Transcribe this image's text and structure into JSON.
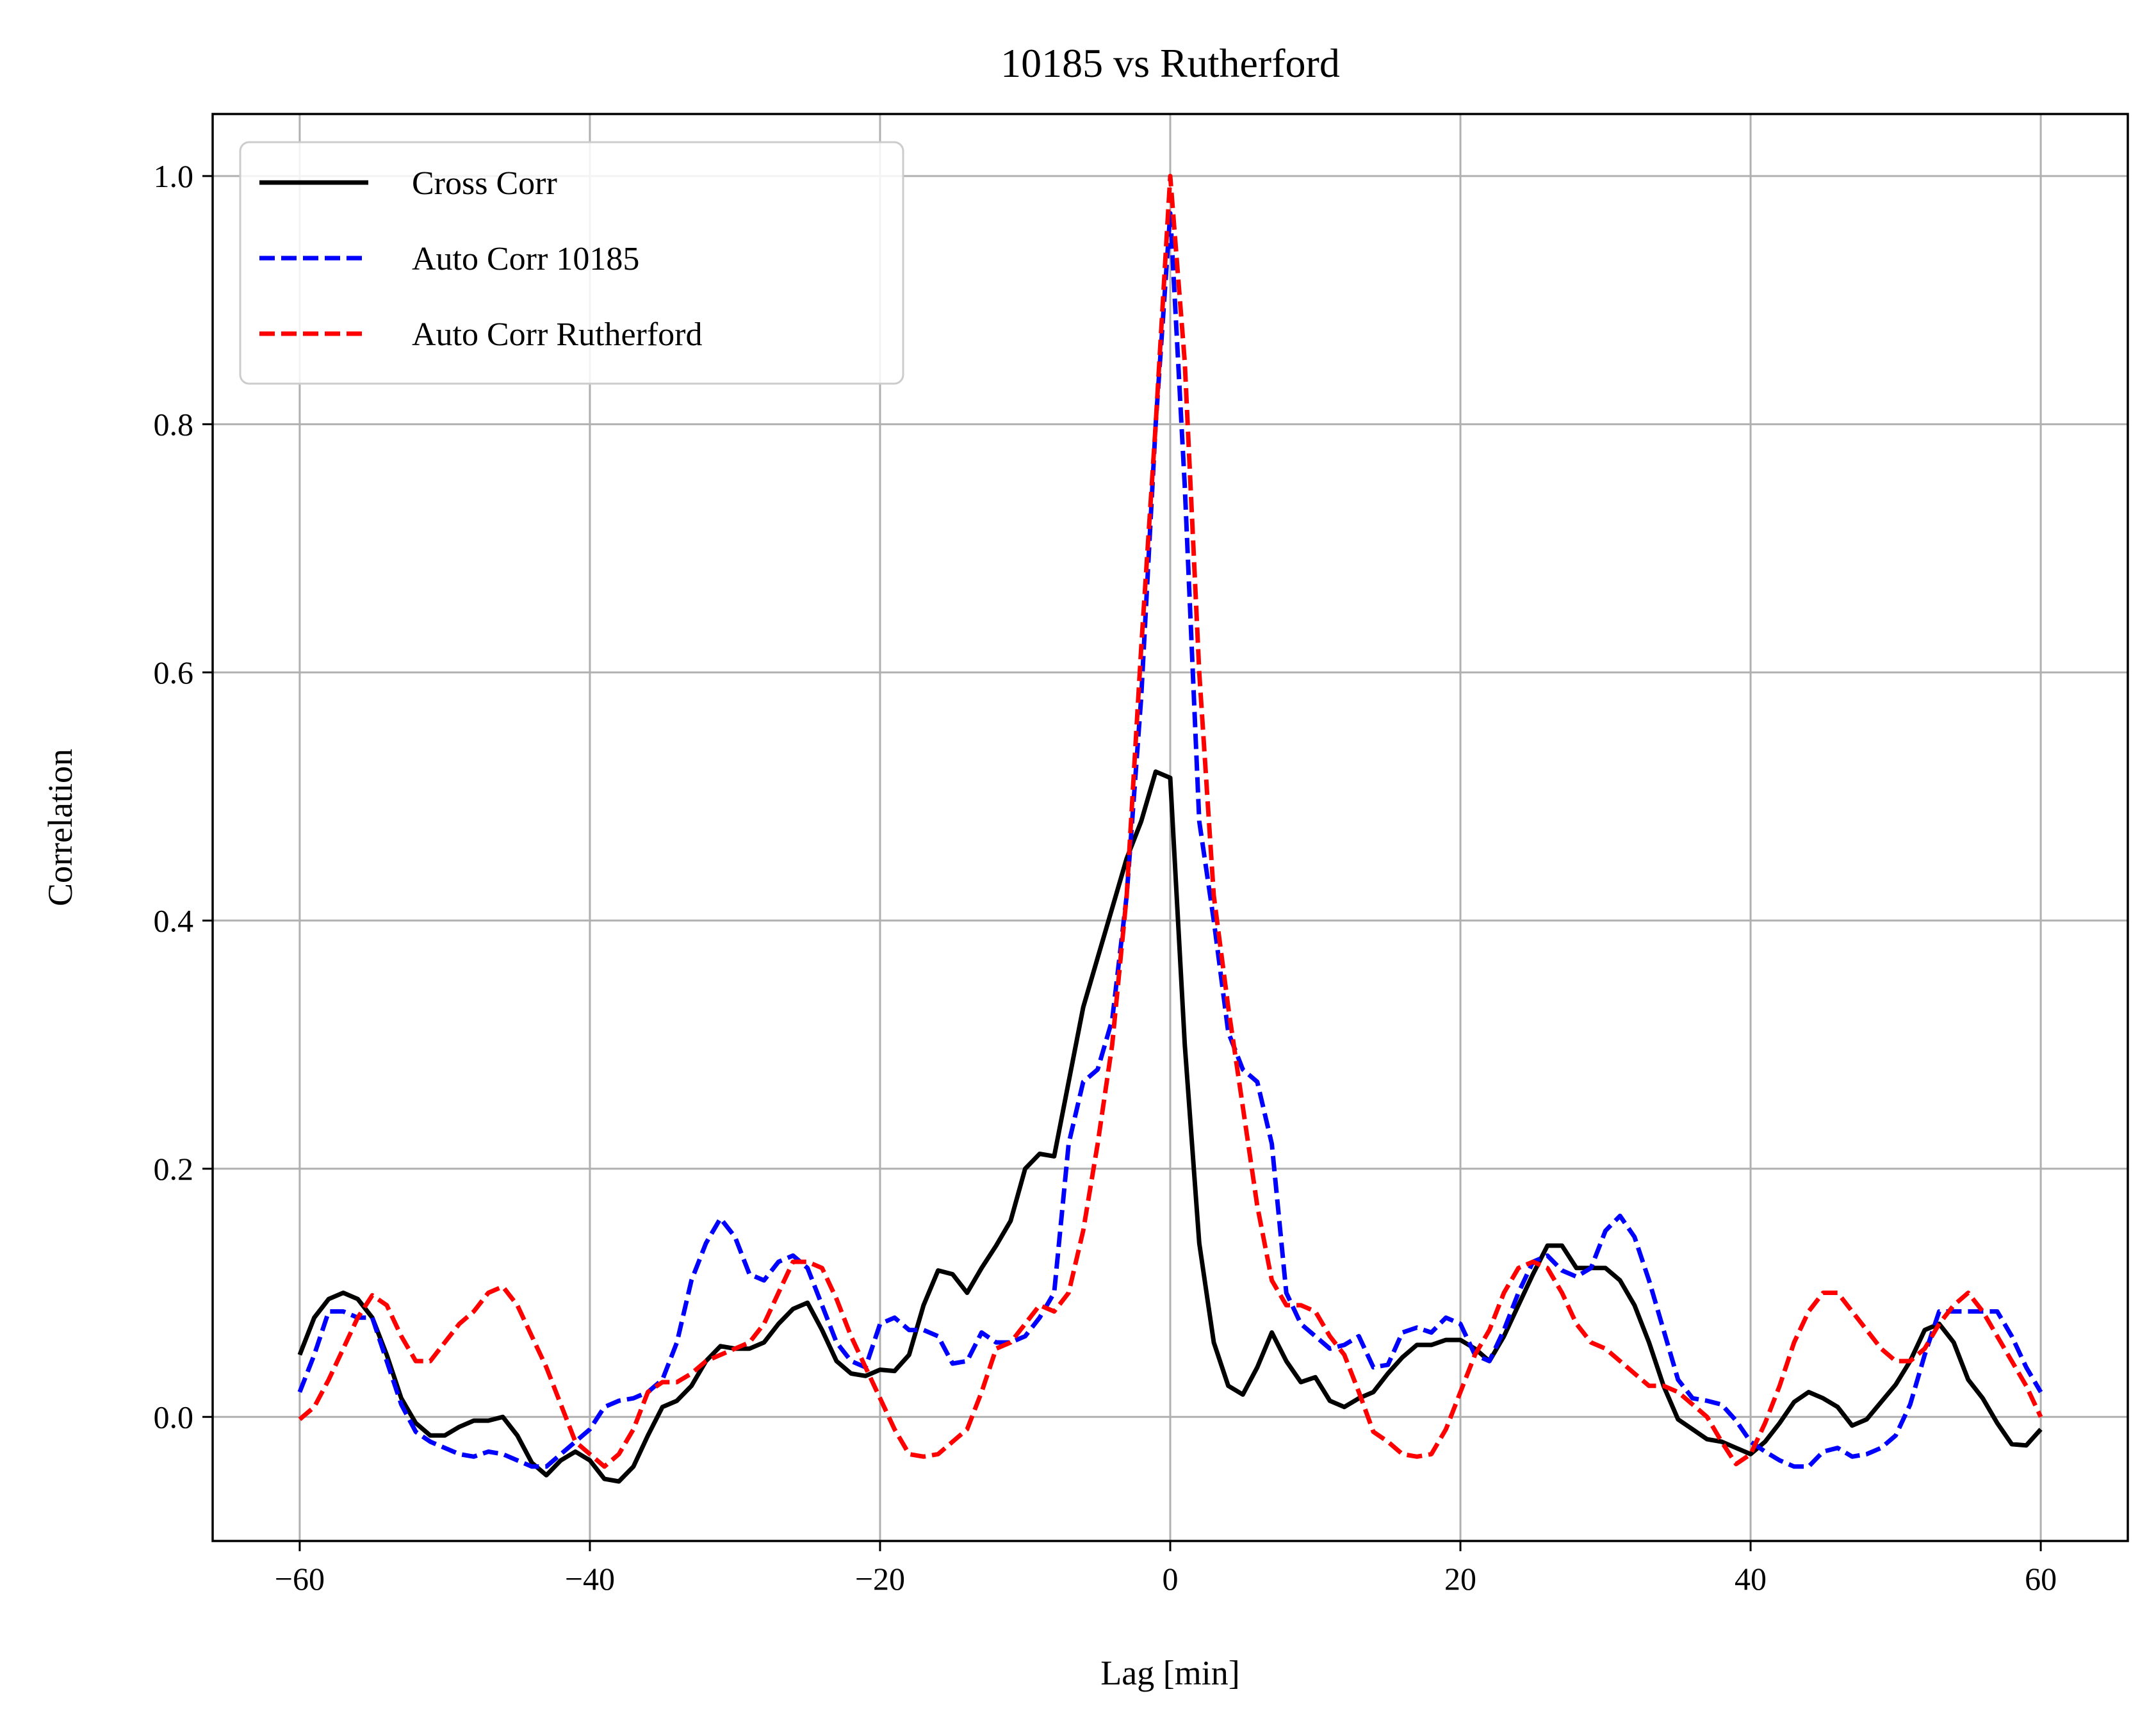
{
  "chart_data": {
    "type": "line",
    "title": "10185 vs Rutherford",
    "xlabel": "Lag [min]",
    "ylabel": "Correlation",
    "xlim": [
      -66,
      66
    ],
    "ylim": [
      -0.1,
      1.05
    ],
    "xticks": [
      -60,
      -40,
      -20,
      0,
      20,
      40,
      60
    ],
    "xtick_labels": [
      "−60",
      "−40",
      "−20",
      "0",
      "20",
      "40",
      "60"
    ],
    "yticks": [
      0.0,
      0.2,
      0.4,
      0.6,
      0.8,
      1.0
    ],
    "ytick_labels": [
      "0.0",
      "0.2",
      "0.4",
      "0.6",
      "0.8",
      "1.0"
    ],
    "grid": true,
    "legend_position": "top-left",
    "series": [
      {
        "name": "Cross Corr",
        "color": "#000000",
        "style": "solid",
        "x": [
          -60,
          -59,
          -58,
          -57,
          -56,
          -55,
          -54,
          -53,
          -52,
          -51,
          -50,
          -49,
          -48,
          -47,
          -46,
          -45,
          -44,
          -43,
          -42,
          -41,
          -40,
          -39,
          -38,
          -37,
          -36,
          -35,
          -34,
          -33,
          -32,
          -31,
          -30,
          -29,
          -28,
          -27,
          -26,
          -25,
          -24,
          -23,
          -22,
          -21,
          -20,
          -19,
          -18,
          -17,
          -16,
          -15,
          -14,
          -13,
          -12,
          -11,
          -10,
          -9,
          -8,
          -7,
          -6,
          -5,
          -4,
          -3,
          -2,
          -1,
          0,
          1,
          2,
          3,
          4,
          5,
          6,
          7,
          8,
          9,
          10,
          11,
          12,
          13,
          14,
          15,
          16,
          17,
          18,
          19,
          20,
          21,
          22,
          23,
          24,
          25,
          26,
          27,
          28,
          29,
          30,
          31,
          32,
          33,
          34,
          35,
          36,
          37,
          38,
          39,
          40,
          41,
          42,
          43,
          44,
          45,
          46,
          47,
          48,
          49,
          50,
          51,
          52,
          53,
          54,
          55,
          56,
          57,
          58,
          59,
          60
        ],
        "y": [
          0.05,
          0.08,
          0.095,
          0.1,
          0.095,
          0.08,
          0.05,
          0.015,
          -0.005,
          -0.015,
          -0.015,
          -0.008,
          -0.003,
          -0.003,
          0.0,
          -0.015,
          -0.037,
          -0.047,
          -0.035,
          -0.028,
          -0.035,
          -0.05,
          -0.052,
          -0.04,
          -0.015,
          0.008,
          0.013,
          0.025,
          0.045,
          0.057,
          0.055,
          0.055,
          0.06,
          0.075,
          0.087,
          0.092,
          0.07,
          0.045,
          0.035,
          0.033,
          0.038,
          0.037,
          0.05,
          0.09,
          0.118,
          0.115,
          0.1,
          0.12,
          0.138,
          0.158,
          0.2,
          0.212,
          0.21,
          0.27,
          0.33,
          0.37,
          0.41,
          0.45,
          0.48,
          0.52,
          0.515,
          0.3,
          0.14,
          0.06,
          0.025,
          0.018,
          0.04,
          0.068,
          0.045,
          0.028,
          0.032,
          0.013,
          0.008,
          0.015,
          0.02,
          0.035,
          0.048,
          0.058,
          0.058,
          0.062,
          0.062,
          0.055,
          0.045,
          0.065,
          0.09,
          0.115,
          0.138,
          0.138,
          0.12,
          0.12,
          0.12,
          0.11,
          0.09,
          0.06,
          0.025,
          -0.002,
          -0.01,
          -0.018,
          -0.02,
          -0.025,
          -0.03,
          -0.02,
          -0.005,
          0.012,
          0.02,
          0.015,
          0.008,
          -0.007,
          -0.002,
          0.012,
          0.026,
          0.045,
          0.07,
          0.075,
          0.06,
          0.03,
          0.015,
          -0.005,
          -0.022,
          -0.023,
          -0.01
        ]
      },
      {
        "name": "Auto Corr 10185",
        "color": "#0000ff",
        "style": "dashed",
        "x": [
          -60,
          -59,
          -58,
          -57,
          -56,
          -55,
          -54,
          -53,
          -52,
          -51,
          -50,
          -49,
          -48,
          -47,
          -46,
          -45,
          -44,
          -43,
          -42,
          -41,
          -40,
          -39,
          -38,
          -37,
          -36,
          -35,
          -34,
          -33,
          -32,
          -31,
          -30,
          -29,
          -28,
          -27,
          -26,
          -25,
          -24,
          -23,
          -22,
          -21,
          -20,
          -19,
          -18,
          -17,
          -16,
          -15,
          -14,
          -13,
          -12,
          -11,
          -10,
          -9,
          -8,
          -7,
          -6,
          -5,
          -4,
          -3,
          -2,
          -1,
          0,
          1,
          2,
          3,
          4,
          5,
          6,
          7,
          8,
          9,
          10,
          11,
          12,
          13,
          14,
          15,
          16,
          17,
          18,
          19,
          20,
          21,
          22,
          23,
          24,
          25,
          26,
          27,
          28,
          29,
          30,
          31,
          32,
          33,
          34,
          35,
          36,
          37,
          38,
          39,
          40,
          41,
          42,
          43,
          44,
          45,
          46,
          47,
          48,
          49,
          50,
          51,
          52,
          53,
          54,
          55,
          56,
          57,
          58,
          59,
          60
        ],
        "y": [
          0.02,
          0.05,
          0.085,
          0.085,
          0.08,
          0.08,
          0.045,
          0.01,
          -0.012,
          -0.02,
          -0.025,
          -0.03,
          -0.032,
          -0.028,
          -0.03,
          -0.035,
          -0.04,
          -0.04,
          -0.03,
          -0.02,
          -0.01,
          0.008,
          0.013,
          0.015,
          0.02,
          0.03,
          0.06,
          0.11,
          0.14,
          0.16,
          0.145,
          0.115,
          0.11,
          0.125,
          0.13,
          0.12,
          0.09,
          0.06,
          0.045,
          0.04,
          0.075,
          0.08,
          0.07,
          0.07,
          0.065,
          0.043,
          0.045,
          0.068,
          0.06,
          0.06,
          0.065,
          0.08,
          0.1,
          0.22,
          0.27,
          0.28,
          0.32,
          0.42,
          0.58,
          0.8,
          0.97,
          0.75,
          0.48,
          0.4,
          0.31,
          0.28,
          0.27,
          0.22,
          0.1,
          0.075,
          0.065,
          0.055,
          0.058,
          0.065,
          0.04,
          0.042,
          0.068,
          0.072,
          0.068,
          0.08,
          0.075,
          0.05,
          0.045,
          0.07,
          0.1,
          0.125,
          0.13,
          0.118,
          0.113,
          0.12,
          0.15,
          0.162,
          0.145,
          0.11,
          0.07,
          0.03,
          0.015,
          0.013,
          0.01,
          -0.003,
          -0.02,
          -0.028,
          -0.035,
          -0.04,
          -0.04,
          -0.028,
          -0.025,
          -0.032,
          -0.03,
          -0.025,
          -0.015,
          0.01,
          0.05,
          0.085,
          0.085,
          0.085,
          0.085,
          0.085,
          0.065,
          0.04,
          0.02
        ]
      },
      {
        "name": "Auto Corr Rutherford",
        "color": "#ff0000",
        "style": "dashed",
        "x": [
          -60,
          -59,
          -58,
          -57,
          -56,
          -55,
          -54,
          -53,
          -52,
          -51,
          -50,
          -49,
          -48,
          -47,
          -46,
          -45,
          -44,
          -43,
          -42,
          -41,
          -40,
          -39,
          -38,
          -37,
          -36,
          -35,
          -34,
          -33,
          -32,
          -31,
          -30,
          -29,
          -28,
          -27,
          -26,
          -25,
          -24,
          -23,
          -22,
          -21,
          -20,
          -19,
          -18,
          -17,
          -16,
          -15,
          -14,
          -13,
          -12,
          -11,
          -10,
          -9,
          -8,
          -7,
          -6,
          -5,
          -4,
          -3,
          -2,
          -1,
          0,
          1,
          2,
          3,
          4,
          5,
          6,
          7,
          8,
          9,
          10,
          11,
          12,
          13,
          14,
          15,
          16,
          17,
          18,
          19,
          20,
          21,
          22,
          23,
          24,
          25,
          26,
          27,
          28,
          29,
          30,
          31,
          32,
          33,
          34,
          35,
          36,
          37,
          38,
          39,
          40,
          41,
          42,
          43,
          44,
          45,
          46,
          47,
          48,
          49,
          50,
          51,
          52,
          53,
          54,
          55,
          56,
          57,
          58,
          59,
          60
        ],
        "y": [
          -0.002,
          0.008,
          0.03,
          0.055,
          0.08,
          0.098,
          0.09,
          0.065,
          0.045,
          0.045,
          0.06,
          0.075,
          0.085,
          0.1,
          0.105,
          0.09,
          0.065,
          0.04,
          0.01,
          -0.02,
          -0.03,
          -0.04,
          -0.03,
          -0.01,
          0.02,
          0.028,
          0.028,
          0.035,
          0.045,
          0.05,
          0.055,
          0.06,
          0.075,
          0.1,
          0.125,
          0.125,
          0.12,
          0.095,
          0.065,
          0.04,
          0.015,
          -0.01,
          -0.03,
          -0.032,
          -0.03,
          -0.02,
          -0.01,
          0.02,
          0.055,
          0.06,
          0.075,
          0.09,
          0.085,
          0.1,
          0.15,
          0.22,
          0.3,
          0.42,
          0.62,
          0.8,
          1.0,
          0.85,
          0.6,
          0.42,
          0.33,
          0.25,
          0.17,
          0.11,
          0.09,
          0.09,
          0.085,
          0.065,
          0.05,
          0.02,
          -0.012,
          -0.02,
          -0.03,
          -0.032,
          -0.03,
          -0.01,
          0.02,
          0.05,
          0.07,
          0.1,
          0.12,
          0.125,
          0.12,
          0.1,
          0.075,
          0.06,
          0.055,
          0.045,
          0.035,
          0.025,
          0.025,
          0.02,
          0.01,
          0.0,
          -0.02,
          -0.038,
          -0.03,
          -0.005,
          0.025,
          0.06,
          0.085,
          0.1,
          0.1,
          0.085,
          0.07,
          0.055,
          0.045,
          0.045,
          0.055,
          0.075,
          0.09,
          0.1,
          0.085,
          0.065,
          0.045,
          0.025,
          0.0
        ]
      }
    ]
  }
}
